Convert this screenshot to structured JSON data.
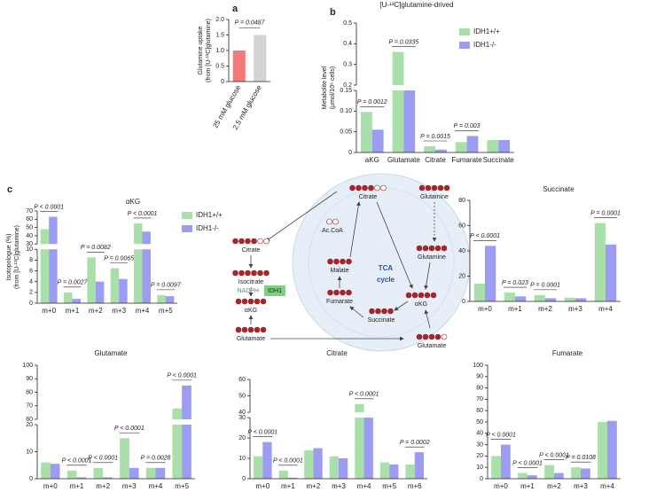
{
  "chart_data": [
    {
      "type": "bar",
      "panel": "a",
      "ylabel": [
        "Glutamine uptake",
        "(from [U-¹³C]glutamine)"
      ],
      "categories": [
        "25 mM glucose",
        "2.5 mM glucose"
      ],
      "values": [
        1.0,
        1.5
      ],
      "colors": [
        "#f47a7a",
        "#d3d3d3"
      ],
      "ylim": [
        0,
        2
      ],
      "yticks": [
        0,
        0.5,
        {
          "value": 1,
          "label": "1.0"
        },
        1.5,
        {
          "value": 2,
          "label": "2.0"
        }
      ],
      "p_value": "P = 0.0487"
    },
    {
      "type": "bar",
      "panel": "b",
      "title": "[U-¹³C]glutamine-drived",
      "ylabel": [
        "Metabolite level",
        "(μmol/10⁶ cells)"
      ],
      "categories": [
        "aKG",
        "Glutamate",
        "Citrate",
        "Fumarate",
        "Succinate"
      ],
      "series": [
        {
          "name": "IDH1+/+",
          "color": "#a9dfa9",
          "values": [
            0.098,
            0.36,
            0.015,
            0.025,
            0.03
          ]
        },
        {
          "name": "IDH1-/-",
          "color": "#9c9cf3",
          "values": [
            0.055,
            0.19,
            0.007,
            0.04,
            0.03
          ]
        }
      ],
      "ylim": [
        0,
        0.5
      ],
      "ybreak": [
        0.15,
        0.2
      ],
      "yticks": [
        0,
        0.05,
        {
          "value": 0.1,
          "label": "0.10"
        },
        0.15,
        0.2,
        0.3,
        0.4,
        0.5
      ],
      "p_values": [
        "P = 0.0012",
        "P = 0.0335",
        "P = 0.0015",
        "P = 0.003",
        null
      ],
      "legend": "upper right"
    },
    {
      "type": "bar",
      "panel": "c",
      "title": "αKG",
      "ylabel": [
        "Isotopologue (%)",
        "(from [U-¹³C]glutamine)"
      ],
      "categories": [
        "m+0",
        "m+1",
        "m+2",
        "m+3",
        "m+4",
        "m+5"
      ],
      "series": [
        {
          "name": "IDH1+/+",
          "color": "#a9dfa9",
          "values": [
            48,
            2.0,
            8.5,
            6.5,
            55,
            1.5
          ]
        },
        {
          "name": "IDH1-/-",
          "color": "#9c9cf3",
          "values": [
            63,
            0.8,
            4.0,
            4.5,
            45,
            1.3
          ]
        }
      ],
      "ylim": [
        0,
        70
      ],
      "ybreak": [
        10,
        30
      ],
      "yticks": [
        0,
        2,
        4,
        6,
        8,
        10,
        30,
        40,
        50,
        60,
        70
      ],
      "p_values": [
        "P < 0.0001",
        "P = 0.0027",
        "P = 0.0082",
        "P = 0.0065",
        "P < 0.0001",
        "P = 0.0097"
      ],
      "legend": "upper right"
    },
    {
      "type": "bar",
      "title": "Succinate",
      "categories": [
        "m+0",
        "m+1",
        "m+2",
        "m+3",
        "m+4"
      ],
      "series": [
        {
          "name": "IDH1+/+",
          "color": "#a9dfa9",
          "values": [
            14,
            7,
            5,
            3,
            62
          ]
        },
        {
          "name": "IDH1-/-",
          "color": "#9c9cf3",
          "values": [
            44,
            4,
            2.5,
            2.5,
            45
          ]
        }
      ],
      "ylim": [
        0,
        80
      ],
      "yticks": [
        0,
        20,
        40,
        60,
        80
      ],
      "p_values": [
        "P < 0.0001",
        "P = 0.023",
        "P = 0.0001",
        null,
        "P = 0.0001"
      ]
    },
    {
      "type": "bar",
      "title": "Glutamate",
      "categories": [
        "m+0",
        "m+1",
        "m+2",
        "m+3",
        "m+4",
        "m+5"
      ],
      "series": [
        {
          "name": "IDH1+/+",
          "color": "#a9dfa9",
          "values": [
            6,
            3,
            4,
            15,
            4,
            68
          ]
        },
        {
          "name": "IDH1-/-",
          "color": "#9c9cf3",
          "values": [
            5.5,
            0.5,
            0.5,
            4,
            4,
            85
          ]
        }
      ],
      "ylim": [
        0,
        100
      ],
      "ybreak": [
        20,
        60
      ],
      "yticks": [
        0,
        10,
        20,
        60,
        70,
        80,
        90,
        100
      ],
      "p_values": [
        null,
        "P < 0.0001",
        "P < 0.0001",
        "P < 0.0001",
        "P = 0.0028",
        "P < 0.0001"
      ]
    },
    {
      "type": "bar",
      "title": "Citrate",
      "categories": [
        "m+0",
        "m+1",
        "m+2",
        "m+3",
        "m+4",
        "m+5",
        "m+6"
      ],
      "series": [
        {
          "name": "IDH1+/+",
          "color": "#a9dfa9",
          "values": [
            11,
            4,
            14,
            11,
            45,
            8,
            7
          ]
        },
        {
          "name": "IDH1-/-",
          "color": "#9c9cf3",
          "values": [
            18,
            0.5,
            15,
            10,
            35,
            7,
            13
          ]
        }
      ],
      "ylim": [
        0,
        60
      ],
      "ybreak": [
        30,
        40
      ],
      "yticks": [
        0,
        10,
        20,
        30,
        40,
        50,
        60
      ],
      "p_values": [
        "P < 0.0001",
        "P < 0.0001",
        null,
        null,
        "P < 0.0001",
        null,
        "P = 0.0002"
      ]
    },
    {
      "type": "bar",
      "title": "Fumarate",
      "categories": [
        "m+0",
        "m+1",
        "m+2",
        "m+3",
        "m+4"
      ],
      "series": [
        {
          "name": "IDH1+/+",
          "color": "#a9dfa9",
          "values": [
            20,
            5,
            12,
            10,
            50
          ]
        },
        {
          "name": "IDH1-/-",
          "color": "#9c9cf3",
          "values": [
            30,
            3,
            5,
            9,
            51
          ]
        }
      ],
      "ylim": [
        0,
        100
      ],
      "yticks": [
        0,
        10,
        20,
        30,
        40,
        50,
        60,
        70,
        80,
        90,
        100
      ],
      "p_values": [
        "P < 0.0001",
        "P < 0.0001",
        "P < 0.0001",
        "P = 0.0108",
        null
      ]
    }
  ],
  "diagram": {
    "labels": [
      "Glutamine",
      "Citrate",
      "Isocitrate",
      "NADPH",
      "IDH1",
      "αKG",
      "Glutamate",
      "Ac.CoA",
      "Citrate",
      "Malate",
      "TCA",
      "cycle",
      "Fumarate",
      "Succinate",
      "αKG",
      "Glutamine",
      "Glutamate"
    ]
  }
}
